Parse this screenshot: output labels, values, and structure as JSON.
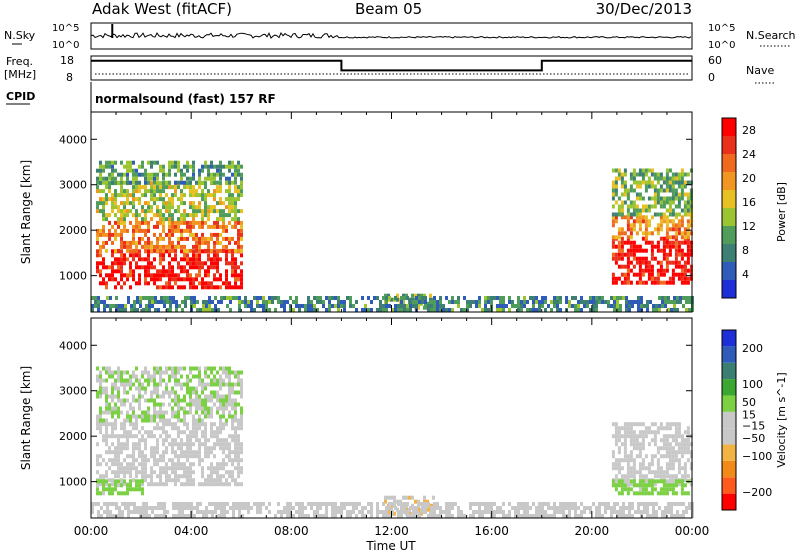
{
  "header": {
    "station": "Adak West (fitACF)",
    "beam": "Beam 05",
    "date": "30/Dec/2013"
  },
  "aux_labels": {
    "nsky": "N.Sky",
    "nsky_top": "10^5",
    "nsky_bottom": "10^0",
    "nsearch": "N.Search",
    "nsearch_top": "10^5",
    "nsearch_bottom": "10^0",
    "freq": "Freq.",
    "freq_unit": "[MHz]",
    "freq_top": "18",
    "freq_bottom": "8",
    "nave": "Nave",
    "nave_top": "60",
    "nave_bottom": "0",
    "cpid": "CPID",
    "cpid_text": "normalsound (fast) 157 RF"
  },
  "colors": {
    "power": [
      "#1f2fd8",
      "#2e5cb8",
      "#3d7f73",
      "#4f9c5b",
      "#9bc530",
      "#e7c024",
      "#f19620",
      "#ef6a1e",
      "#e8301b",
      "#ff0000"
    ],
    "velocity": [
      "#ff0000",
      "#ff5a1e",
      "#f28a19",
      "#f2b244",
      "#c8c8c8",
      "#c8c8c8",
      "#7bd043",
      "#3ca632",
      "#3b7f73",
      "#2e5cb8",
      "#1f2fd8"
    ]
  },
  "chart_data": [
    {
      "type": "heatmap",
      "name": "power",
      "xlabel": "",
      "ylabel": "Slant Range [km]",
      "x_ticks": [
        "00:00",
        "04:00",
        "08:00",
        "12:00",
        "16:00",
        "20:00",
        "00:00"
      ],
      "y_ticks": [
        1000,
        2000,
        3000,
        4000
      ],
      "ylim": [
        200,
        4600
      ],
      "colorbar": {
        "label": "Power [dB]",
        "ticks": [
          4,
          8,
          12,
          16,
          20,
          24,
          28
        ],
        "range": [
          0,
          30
        ]
      },
      "regions": [
        {
          "t": [
            0.2,
            6.0
          ],
          "r": [
            700,
            1500
          ],
          "level": 28
        },
        {
          "t": [
            0.2,
            6.0
          ],
          "r": [
            1500,
            2200
          ],
          "level": 22
        },
        {
          "t": [
            0.2,
            6.0
          ],
          "r": [
            2200,
            3000
          ],
          "level": 14
        },
        {
          "t": [
            0.2,
            6.0
          ],
          "r": [
            3000,
            3500
          ],
          "level": 10
        },
        {
          "t": [
            20.8,
            24.0
          ],
          "r": [
            800,
            1800
          ],
          "level": 28
        },
        {
          "t": [
            20.8,
            24.0
          ],
          "r": [
            1800,
            2300
          ],
          "level": 20
        },
        {
          "t": [
            20.8,
            24.0
          ],
          "r": [
            2300,
            3300
          ],
          "level": 12
        },
        {
          "t": [
            11.7,
            13.7
          ],
          "r": [
            250,
            600
          ],
          "level": 12
        },
        {
          "t": [
            0.0,
            24.0
          ],
          "r": [
            200,
            500
          ],
          "level": 8
        }
      ]
    },
    {
      "type": "heatmap",
      "name": "velocity",
      "xlabel": "Time UT",
      "ylabel": "Slant Range [km]",
      "x_ticks": [
        "00:00",
        "04:00",
        "08:00",
        "12:00",
        "16:00",
        "20:00",
        "00:00"
      ],
      "y_ticks": [
        1000,
        2000,
        3000,
        4000
      ],
      "ylim": [
        200,
        4600
      ],
      "colorbar": {
        "label": "Velocity [m s^-1]",
        "ticks": [
          200,
          100,
          50,
          15,
          -15,
          -50,
          -100,
          -200
        ],
        "range": [
          -250,
          250
        ]
      },
      "regions": [
        {
          "t": [
            0.2,
            6.0
          ],
          "r": [
            900,
            2300
          ],
          "level": 0
        },
        {
          "t": [
            0.2,
            6.0
          ],
          "r": [
            2300,
            3500
          ],
          "level": 20
        },
        {
          "t": [
            0.2,
            2.0
          ],
          "r": [
            700,
            1000
          ],
          "level": 40
        },
        {
          "t": [
            20.8,
            24.0
          ],
          "r": [
            900,
            2300
          ],
          "level": 0
        },
        {
          "t": [
            20.8,
            24.0
          ],
          "r": [
            700,
            1000
          ],
          "level": 40
        },
        {
          "t": [
            11.7,
            13.7
          ],
          "r": [
            250,
            650
          ],
          "level": -60
        },
        {
          "t": [
            0.0,
            24.0
          ],
          "r": [
            200,
            500
          ],
          "level": -30
        }
      ]
    }
  ],
  "freq_series": {
    "t": [
      0,
      10,
      10,
      18,
      18,
      24
    ],
    "v": [
      16,
      16,
      12,
      12,
      16,
      16
    ]
  },
  "x_axis_label": "Time UT"
}
